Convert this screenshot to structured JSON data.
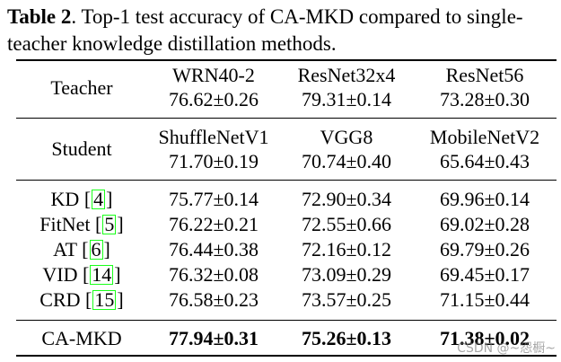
{
  "caption": {
    "label": "Table 2",
    "text": ". Top-1 test accuracy of CA-MKD compared to single-teacher knowledge distillation methods."
  },
  "teacher_row": {
    "label": "Teacher",
    "models": [
      "WRN40-2",
      "ResNet32x4",
      "ResNet56"
    ],
    "scores": [
      "76.62±0.26",
      "79.31±0.14",
      "73.28±0.30"
    ]
  },
  "student_row": {
    "label": "Student",
    "models": [
      "ShuffleNetV1",
      "VGG8",
      "MobileNetV2"
    ],
    "scores": [
      "71.70±0.19",
      "70.74±0.40",
      "65.64±0.43"
    ]
  },
  "methods": [
    {
      "name": "KD",
      "ref": "4",
      "scores": [
        "75.77±0.14",
        "72.90±0.34",
        "69.96±0.14"
      ]
    },
    {
      "name": "FitNet",
      "ref": "5",
      "scores": [
        "76.22±0.21",
        "72.55±0.66",
        "69.02±0.28"
      ]
    },
    {
      "name": "AT",
      "ref": "6",
      "scores": [
        "76.44±0.38",
        "72.16±0.12",
        "69.79±0.26"
      ]
    },
    {
      "name": "VID",
      "ref": "14",
      "scores": [
        "76.32±0.08",
        "73.09±0.29",
        "69.45±0.17"
      ]
    },
    {
      "name": "CRD",
      "ref": "15",
      "scores": [
        "76.58±0.23",
        "73.57±0.25",
        "71.15±0.44"
      ]
    }
  ],
  "ours": {
    "name": "CA-MKD",
    "scores": [
      "77.94±0.31",
      "75.26±0.13",
      "71.38±0.02"
    ]
  },
  "watermark": "CSDN @~怨橱~"
}
